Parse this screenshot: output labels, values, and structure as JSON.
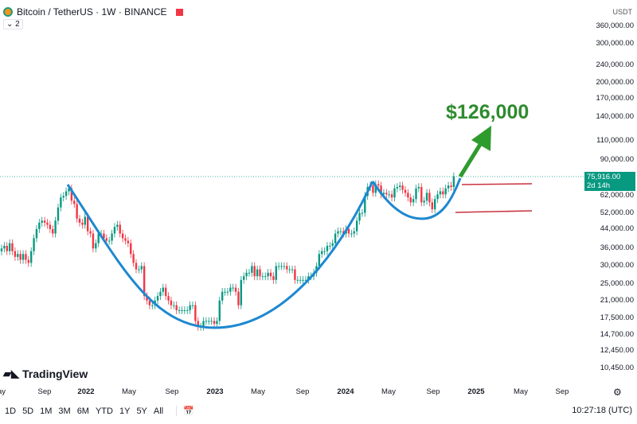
{
  "header": {
    "title": "Bitcoin / TetherUS · 1W · BINANCE",
    "indicator_count": "2"
  },
  "currency": "USDT",
  "last_price": "75,916.00",
  "countdown": "2d 14h",
  "y_labels": [
    [
      "360,000.00",
      360000
    ],
    [
      "300,000.00",
      300000
    ],
    [
      "240,000.00",
      240000
    ],
    [
      "200,000.00",
      200000
    ],
    [
      "170,000.00",
      170000
    ],
    [
      "140,000.00",
      140000
    ],
    [
      "110,000.00",
      110000
    ],
    [
      "90,000.00",
      90000
    ],
    [
      "62,000.00",
      62000
    ],
    [
      "52,000.00",
      52000
    ],
    [
      "44,000.00",
      44000
    ],
    [
      "36,000.00",
      36000
    ],
    [
      "30,000.00",
      30000
    ],
    [
      "25,000.00",
      25000
    ],
    [
      "21,000.00",
      21000
    ],
    [
      "17,500.00",
      17500
    ],
    [
      "14,700.00",
      14700
    ],
    [
      "12,450.00",
      12450
    ],
    [
      "10,450.00",
      10450
    ]
  ],
  "x_labels": [
    [
      "ay",
      false
    ],
    [
      "Sep",
      false
    ],
    [
      "2022",
      true
    ],
    [
      "May",
      false
    ],
    [
      "Sep",
      false
    ],
    [
      "2023",
      true
    ],
    [
      "May",
      false
    ],
    [
      "Sep",
      false
    ],
    [
      "2024",
      true
    ],
    [
      "May",
      false
    ],
    [
      "Sep",
      false
    ],
    [
      "2025",
      true
    ],
    [
      "May",
      false
    ],
    [
      "Sep",
      false
    ]
  ],
  "annotation": "$126,000",
  "brand": "TradingView",
  "ranges": [
    "1D",
    "5D",
    "1M",
    "3M",
    "6M",
    "YTD",
    "1Y",
    "5Y",
    "All"
  ],
  "clock": "10:27:18 (UTC)",
  "colors": {
    "up": "#089981",
    "down": "#f23645",
    "curve": "#1e88d0",
    "target": "#2e8b2e"
  },
  "chart_data": {
    "type": "candlestick",
    "scale": "log",
    "unit": "USDT (thousands)",
    "weekly_closes": [
      36,
      37,
      35,
      38,
      35,
      33,
      34,
      32,
      34,
      32,
      31,
      35,
      40,
      44,
      47,
      48,
      47,
      46,
      44,
      42,
      48,
      55,
      61,
      62,
      65,
      67,
      59,
      57,
      49,
      47,
      46,
      50,
      43,
      42,
      36,
      38,
      42,
      42,
      40,
      39,
      39,
      42,
      45,
      46,
      42,
      40,
      39,
      38,
      34,
      31,
      29,
      29,
      30,
      22,
      21,
      20,
      20,
      21,
      22,
      23,
      24,
      22,
      21,
      20,
      20,
      19,
      19,
      19,
      19,
      19,
      20,
      20,
      17,
      16,
      16,
      17,
      17,
      17,
      17,
      16.5,
      17,
      21,
      23,
      23,
      23,
      24,
      24,
      23,
      20,
      26,
      27,
      28,
      28,
      30,
      27,
      29,
      27,
      27,
      27,
      28,
      27,
      26,
      30,
      30,
      30,
      30,
      29,
      29,
      29,
      26,
      26,
      26,
      26,
      26,
      27,
      27,
      28,
      30,
      34,
      35,
      35,
      37,
      37,
      38,
      42,
      43,
      43,
      42,
      44,
      42,
      42,
      43,
      48,
      52,
      52,
      62,
      68,
      69,
      64,
      70,
      69,
      63,
      64,
      63,
      63,
      61,
      67,
      68,
      69,
      66,
      64,
      61,
      58,
      60,
      67,
      68,
      58,
      59,
      64,
      58,
      54,
      60,
      63,
      65,
      63,
      67,
      69,
      68,
      76
    ]
  }
}
